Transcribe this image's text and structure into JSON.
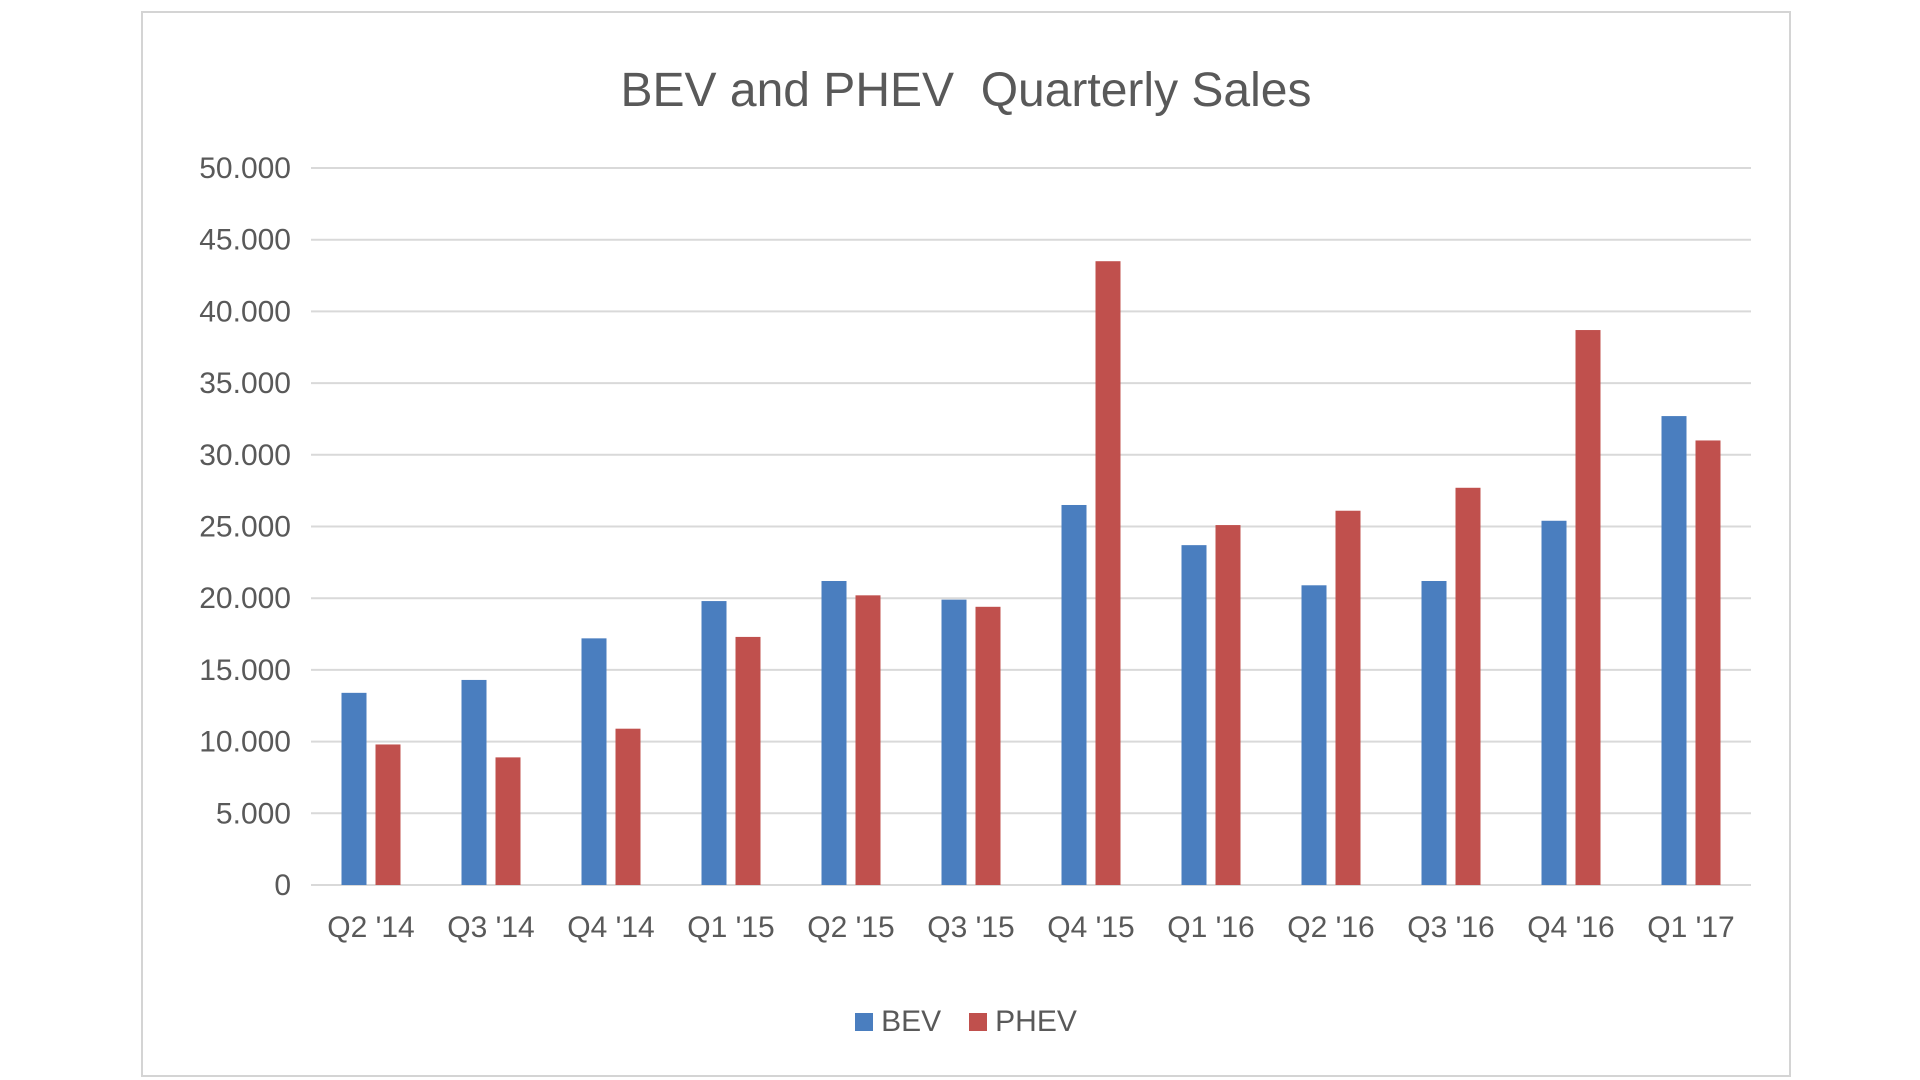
{
  "chart_data": {
    "type": "bar",
    "title": "BEV and PHEV  Quarterly Sales",
    "categories": [
      "Q2 '14",
      "Q3 '14",
      "Q4 '14",
      "Q1 '15",
      "Q2 '15",
      "Q3 '15",
      "Q4 '15",
      "Q1 '16",
      "Q2 '16",
      "Q3 '16",
      "Q4 '16",
      "Q1 '17"
    ],
    "series": [
      {
        "name": "BEV",
        "color": "#4a7ebf",
        "values": [
          13400,
          14300,
          17200,
          19800,
          21200,
          19900,
          26500,
          23700,
          20900,
          21200,
          25400,
          32700
        ]
      },
      {
        "name": "PHEV",
        "color": "#c0504d",
        "values": [
          9800,
          8900,
          10900,
          17300,
          20200,
          19400,
          43500,
          25100,
          26100,
          27700,
          38700,
          31000
        ]
      }
    ],
    "yticks": [
      "0",
      "5.000",
      "10.000",
      "15.000",
      "20.000",
      "25.000",
      "30.000",
      "35.000",
      "40.000",
      "45.000",
      "50.000"
    ],
    "ylim": [
      0,
      50000
    ],
    "grid": true,
    "legend": "bottom"
  }
}
